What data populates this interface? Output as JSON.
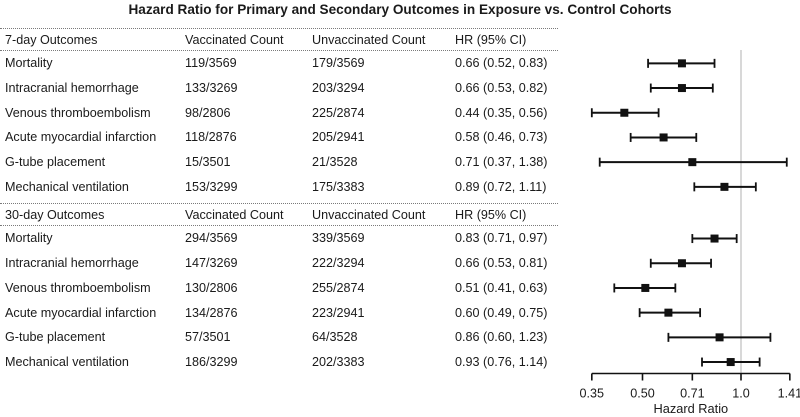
{
  "figure_title": "Hazard Ratio for Primary and Secondary Outcomes in Exposure vs. Control Cohorts",
  "columns": {
    "vaccinated": "Vaccinated Count",
    "unvaccinated": "Unvaccinated Count",
    "hr": "HR (95% CI)"
  },
  "sections": [
    {
      "label": "7-day Outcomes",
      "rows": [
        {
          "outcome": "Mortality",
          "vaccinated": "119/3569",
          "unvaccinated": "179/3569",
          "hr_text": "0.66 (0.52, 0.83)"
        },
        {
          "outcome": "Intracranial hemorrhage",
          "vaccinated": "133/3269",
          "unvaccinated": "203/3294",
          "hr_text": "0.66 (0.53, 0.82)"
        },
        {
          "outcome": "Venous thromboembolism",
          "vaccinated": "98/2806",
          "unvaccinated": "225/2874",
          "hr_text": "0.44 (0.35, 0.56)"
        },
        {
          "outcome": "Acute myocardial infarction",
          "vaccinated": "118/2876",
          "unvaccinated": "205/2941",
          "hr_text": "0.58 (0.46, 0.73)"
        },
        {
          "outcome": "G-tube placement",
          "vaccinated": "15/3501",
          "unvaccinated": "21/3528",
          "hr_text": "0.71 (0.37, 1.38)"
        },
        {
          "outcome": "Mechanical ventilation",
          "vaccinated": "153/3299",
          "unvaccinated": "175/3383",
          "hr_text": "0.89 (0.72, 1.11)"
        }
      ]
    },
    {
      "label": "30-day Outcomes",
      "rows": [
        {
          "outcome": "Mortality",
          "vaccinated": "294/3569",
          "unvaccinated": "339/3569",
          "hr_text": "0.83 (0.71, 0.97)"
        },
        {
          "outcome": "Intracranial hemorrhage",
          "vaccinated": "147/3269",
          "unvaccinated": "222/3294",
          "hr_text": "0.66 (0.53, 0.81)"
        },
        {
          "outcome": "Venous thromboembolism",
          "vaccinated": "130/2806",
          "unvaccinated": "255/2874",
          "hr_text": "0.51 (0.41, 0.63)"
        },
        {
          "outcome": "Acute myocardial infarction",
          "vaccinated": "134/2876",
          "unvaccinated": "223/2941",
          "hr_text": "0.60 (0.49, 0.75)"
        },
        {
          "outcome": "G-tube placement",
          "vaccinated": "57/3501",
          "unvaccinated": "64/3528",
          "hr_text": "0.86 (0.60, 1.23)"
        },
        {
          "outcome": "Mechanical ventilation",
          "vaccinated": "186/3299",
          "unvaccinated": "202/3383",
          "hr_text": "0.93 (0.76, 1.14)"
        }
      ]
    }
  ],
  "chart_data": {
    "type": "scatter",
    "subtype": "forest-plot",
    "title": "Hazard Ratio for Primary and Secondary Outcomes in Exposure vs. Control Cohorts",
    "xlabel": "Hazard Ratio",
    "x_scale": "log2",
    "xlim": [
      0.35,
      1.41
    ],
    "x_ticks": [
      0.35,
      0.5,
      0.71,
      1.0,
      1.41
    ],
    "x_tick_labels": [
      "0.35",
      "0.50",
      "0.71",
      "1.0",
      "1.41"
    ],
    "reference_line": 1.0,
    "grid": false,
    "legend": false,
    "groups": [
      {
        "label": "7-day Outcomes",
        "points": [
          {
            "outcome": "Mortality",
            "hr": 0.66,
            "ci_low": 0.52,
            "ci_high": 0.83
          },
          {
            "outcome": "Intracranial hemorrhage",
            "hr": 0.66,
            "ci_low": 0.53,
            "ci_high": 0.82
          },
          {
            "outcome": "Venous thromboembolism",
            "hr": 0.44,
            "ci_low": 0.35,
            "ci_high": 0.56
          },
          {
            "outcome": "Acute myocardial infarction",
            "hr": 0.58,
            "ci_low": 0.46,
            "ci_high": 0.73
          },
          {
            "outcome": "G-tube placement",
            "hr": 0.71,
            "ci_low": 0.37,
            "ci_high": 1.38
          },
          {
            "outcome": "Mechanical ventilation",
            "hr": 0.89,
            "ci_low": 0.72,
            "ci_high": 1.11
          }
        ]
      },
      {
        "label": "30-day Outcomes",
        "points": [
          {
            "outcome": "Mortality",
            "hr": 0.83,
            "ci_low": 0.71,
            "ci_high": 0.97
          },
          {
            "outcome": "Intracranial hemorrhage",
            "hr": 0.66,
            "ci_low": 0.53,
            "ci_high": 0.81
          },
          {
            "outcome": "Venous thromboembolism",
            "hr": 0.51,
            "ci_low": 0.41,
            "ci_high": 0.63
          },
          {
            "outcome": "Acute myocardial infarction",
            "hr": 0.6,
            "ci_low": 0.49,
            "ci_high": 0.75
          },
          {
            "outcome": "G-tube placement",
            "hr": 0.86,
            "ci_low": 0.6,
            "ci_high": 1.23
          },
          {
            "outcome": "Mechanical ventilation",
            "hr": 0.93,
            "ci_low": 0.76,
            "ci_high": 1.14
          }
        ]
      }
    ]
  },
  "colors": {
    "marker": "#111111",
    "ci_line": "#111111",
    "reference_line": "#cccccc",
    "axis": "#111111",
    "text": "#1a1a1a",
    "divider": "#7a7a7a"
  }
}
